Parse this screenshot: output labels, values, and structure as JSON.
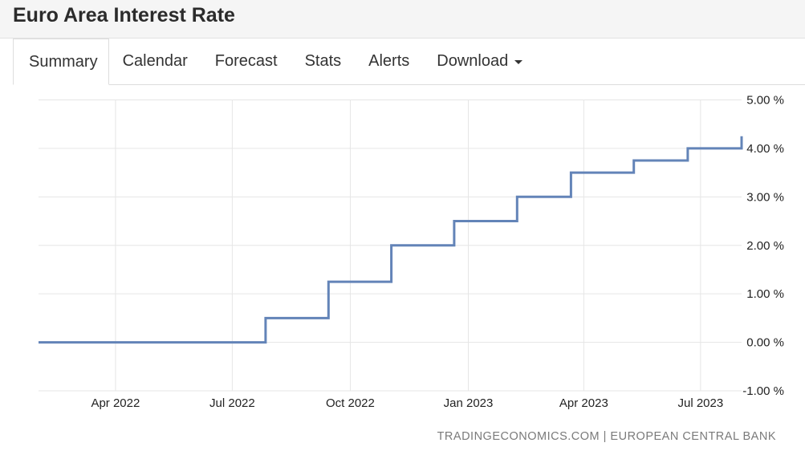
{
  "header": {
    "title": "Euro Area Interest Rate"
  },
  "tabs": [
    {
      "label": "Summary",
      "active": true
    },
    {
      "label": "Calendar",
      "active": false
    },
    {
      "label": "Forecast",
      "active": false
    },
    {
      "label": "Stats",
      "active": false
    },
    {
      "label": "Alerts",
      "active": false
    },
    {
      "label": "Download",
      "active": false,
      "icon": "caret-down-icon"
    }
  ],
  "source": "TRADINGECONOMICS.COM | EUROPEAN CENTRAL BANK",
  "colors": {
    "line": "#6384b8",
    "grid": "#e6e6e6"
  },
  "chart_data": {
    "type": "line",
    "step": true,
    "x_ticks": [
      "Apr 2022",
      "Jul 2022",
      "Oct 2022",
      "Jan 2023",
      "Apr 2023",
      "Jul 2023"
    ],
    "y_ticks": [
      "5.00 %",
      "4.00 %",
      "3.00 %",
      "2.00 %",
      "1.00 %",
      "0.00 %",
      "-1.00 %"
    ],
    "ylim": [
      -1,
      5
    ],
    "xlim": [
      "2022-01-31",
      "2023-08-02"
    ],
    "grid": true,
    "series": [
      {
        "values": [
          {
            "x": "2022-01-31",
            "y": 0.0
          },
          {
            "x": "2022-07-27",
            "y": 0.5
          },
          {
            "x": "2022-09-14",
            "y": 1.25
          },
          {
            "x": "2022-11-02",
            "y": 2.0
          },
          {
            "x": "2022-12-21",
            "y": 2.5
          },
          {
            "x": "2023-02-08",
            "y": 3.0
          },
          {
            "x": "2023-03-22",
            "y": 3.5
          },
          {
            "x": "2023-05-10",
            "y": 3.75
          },
          {
            "x": "2023-06-21",
            "y": 4.0
          },
          {
            "x": "2023-08-02",
            "y": 4.25
          }
        ]
      }
    ]
  }
}
